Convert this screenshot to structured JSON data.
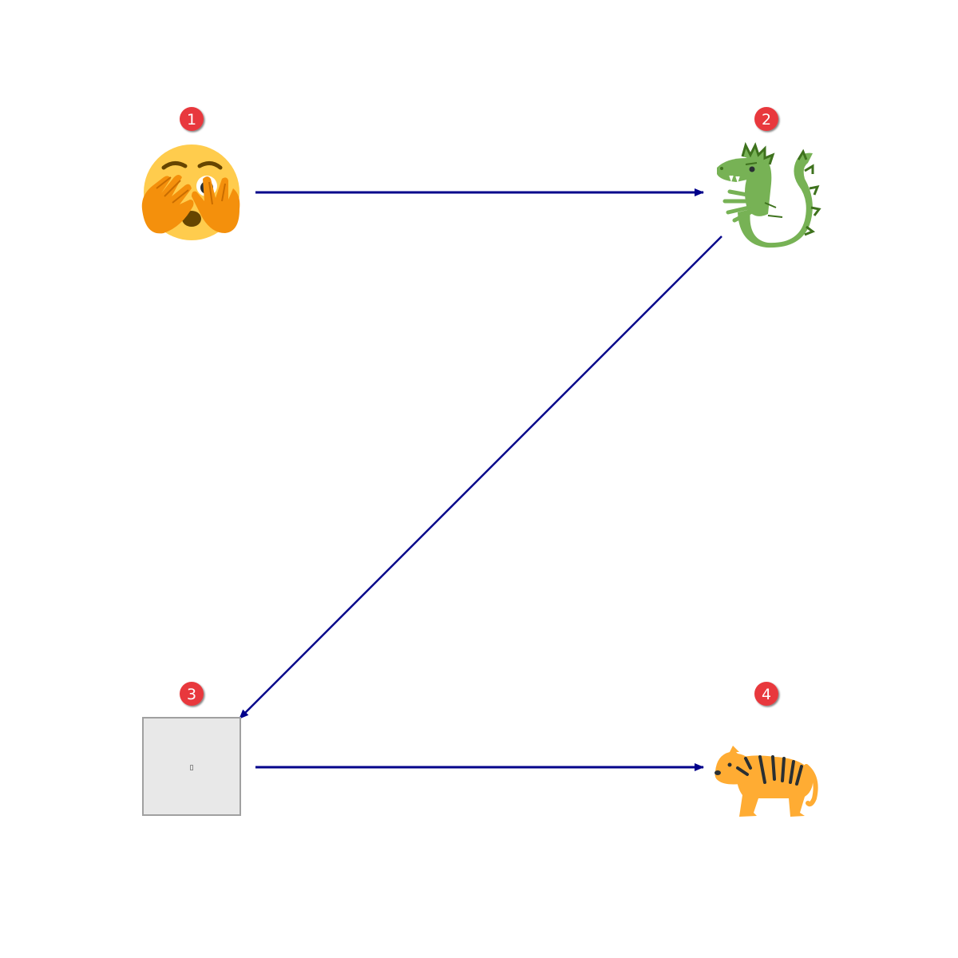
{
  "diagram": {
    "nodes": [
      {
        "id": "1",
        "badge": "1",
        "icon": "face-with-hand-over-eyes-peeking-icon"
      },
      {
        "id": "2",
        "badge": "2",
        "icon": "dragon-icon"
      },
      {
        "id": "3",
        "badge": "3",
        "icon": "missing-glyph-box",
        "placeholder_glyph": "▯"
      },
      {
        "id": "4",
        "badge": "4",
        "icon": "tiger-icon"
      }
    ],
    "edges": [
      {
        "from": "1",
        "to": "2"
      },
      {
        "from": "2",
        "to": "3"
      },
      {
        "from": "3",
        "to": "4"
      }
    ],
    "colors": {
      "arrow": "#00008b",
      "badge_fill": "#e8393c",
      "badge_text": "#ffffff",
      "placeholder_fill": "#e8e8e8",
      "placeholder_stroke": "#a0a0a0"
    }
  }
}
